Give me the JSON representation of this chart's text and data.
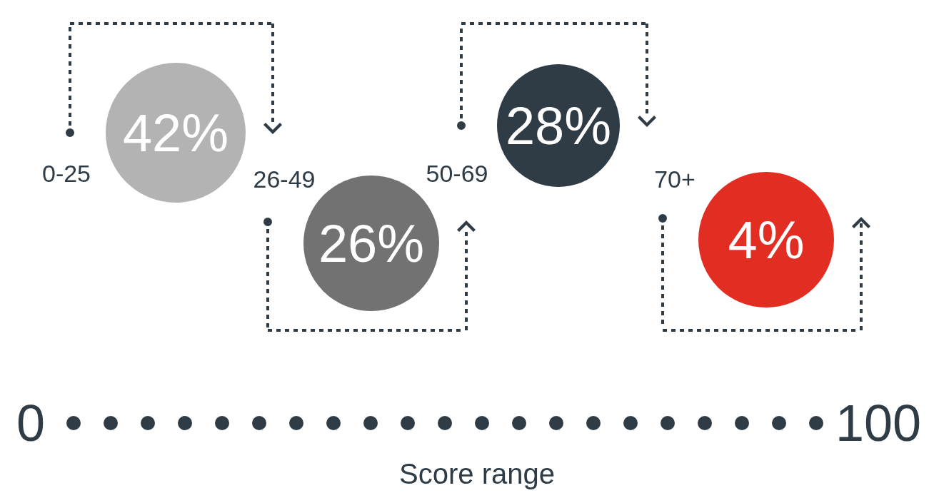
{
  "chart_data": {
    "type": "other",
    "categories": [
      "0-25",
      "26-49",
      "50-69",
      "70+"
    ],
    "values": [
      42,
      26,
      28,
      4
    ],
    "value_labels": [
      "42%",
      "26%",
      "28%",
      "4%"
    ],
    "colors": [
      "#b3b3b3",
      "#727272",
      "#2f3b45",
      "#e22d23"
    ],
    "xlabel": "Score range",
    "annotations": [
      "0",
      "100"
    ]
  }
}
